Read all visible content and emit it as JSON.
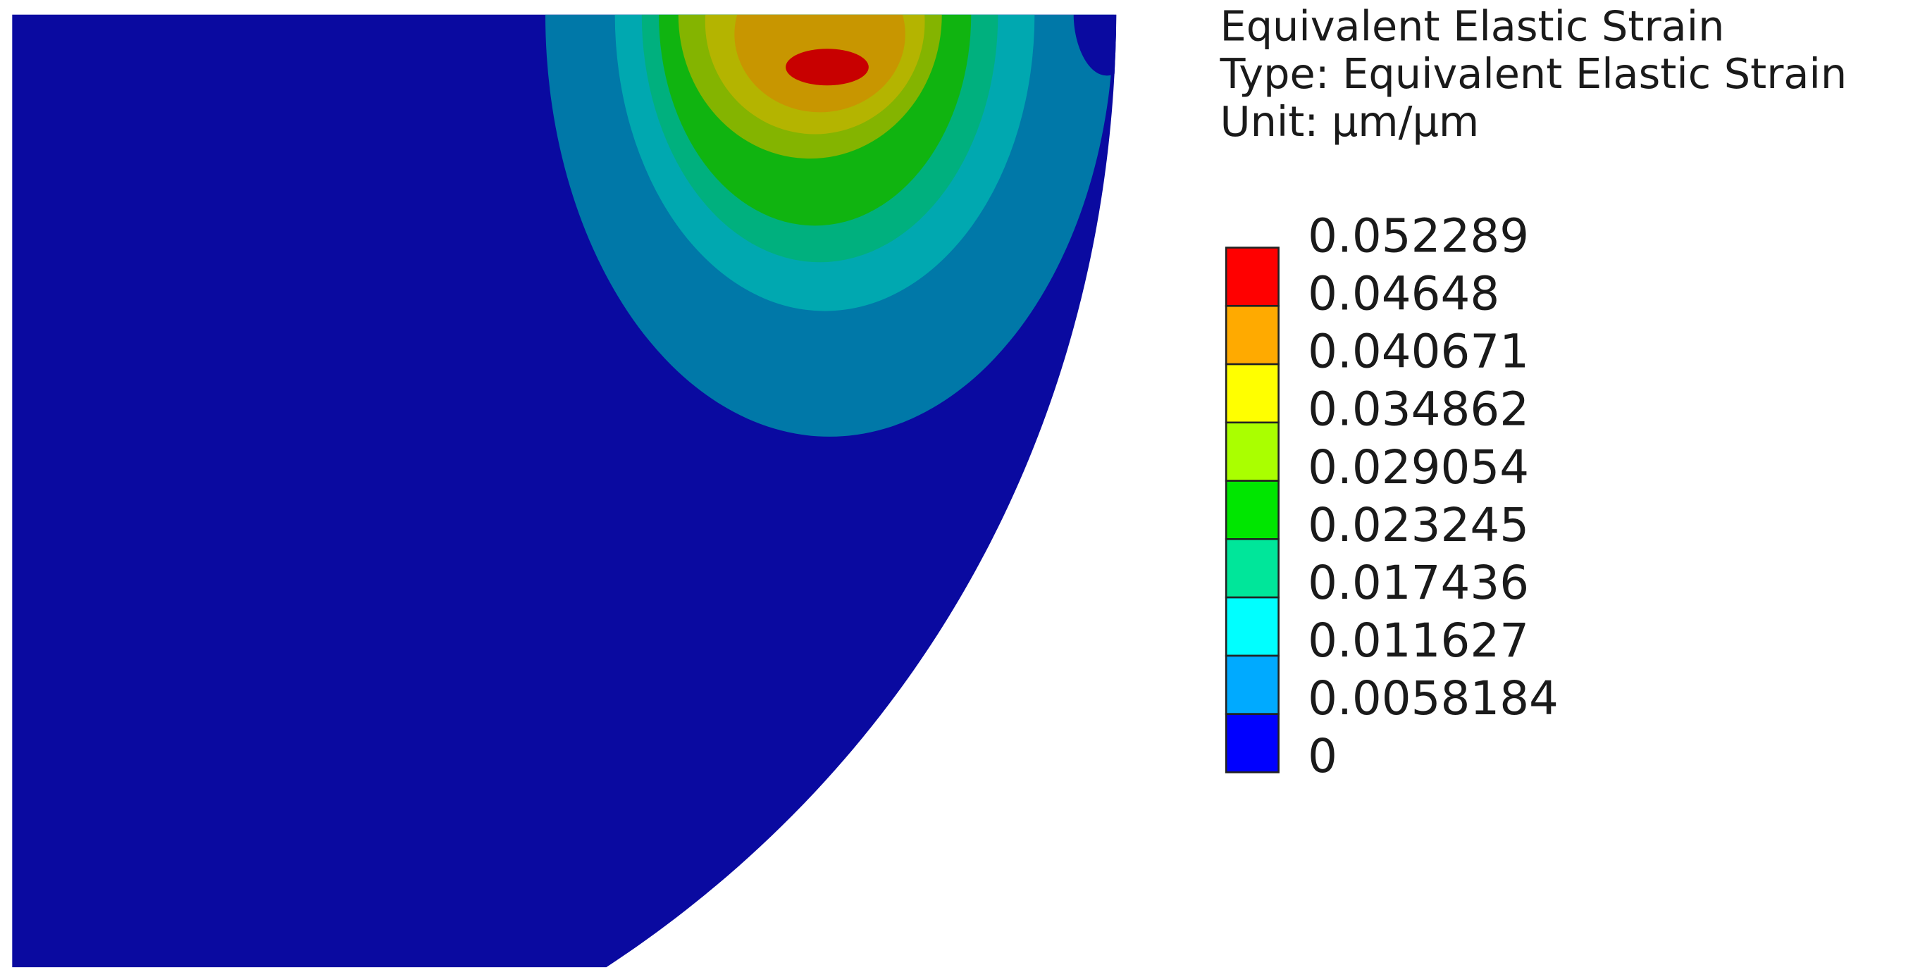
{
  "legend": {
    "title_lines": [
      "Equivalent Elastic Strain",
      "Type: Equivalent Elastic Strain",
      "Unit: µm/µm"
    ],
    "levels": [
      0.052289,
      0.04648,
      0.040671,
      0.034862,
      0.029054,
      0.023245,
      0.017436,
      0.011627,
      0.0058184,
      0
    ],
    "colors": [
      "#ff0000",
      "#ffaa00",
      "#ffff00",
      "#aaff00",
      "#00e600",
      "#00e69a",
      "#00ffff",
      "#00aaff",
      "#0000ff"
    ]
  }
}
